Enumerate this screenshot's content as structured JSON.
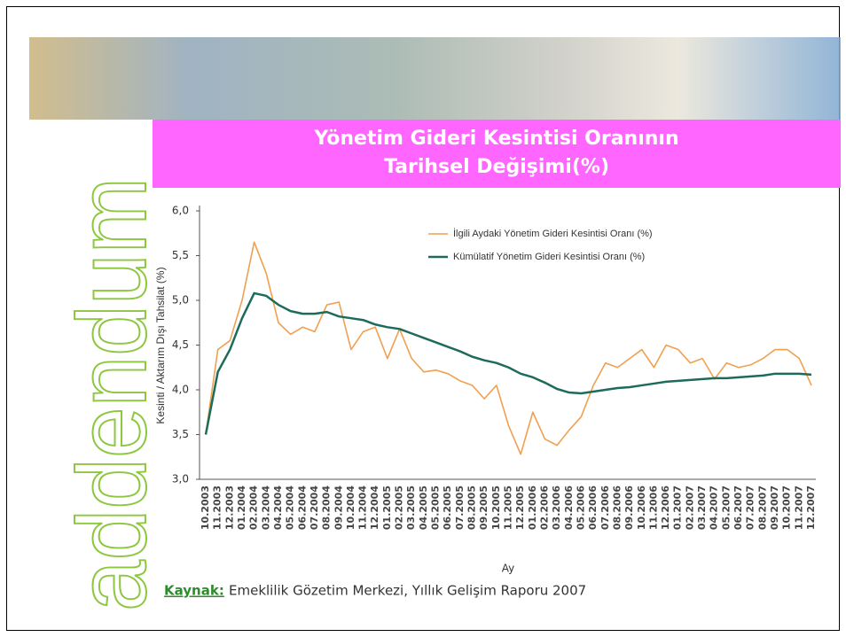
{
  "logo": "addendum",
  "chart_data": {
    "type": "line",
    "title": [
      "Yönetim Gideri Kesintisi Oranının",
      "Tarihsel Değişimi(%)"
    ],
    "y_label": "Kesinti / Aktarım Dışı Tahsilat (%)",
    "x_label": "Ay",
    "categories": [
      "10.2003",
      "11.2003",
      "12.2003",
      "01.2004",
      "02.2004",
      "03.2004",
      "04.2004",
      "05.2004",
      "06.2004",
      "07.2004",
      "08.2004",
      "09.2004",
      "10.2004",
      "11.2004",
      "12.2004",
      "01.2005",
      "02.2005",
      "03.2005",
      "04.2005",
      "05.2005",
      "06.2005",
      "07.2005",
      "08.2005",
      "09.2005",
      "10.2005",
      "11.2005",
      "12.2005",
      "01.2006",
      "02.2006",
      "03.2006",
      "04.2006",
      "05.2006",
      "06.2006",
      "07.2006",
      "08.2006",
      "09.2006",
      "10.2006",
      "11.2006",
      "12.2006",
      "01.2007",
      "02.2007",
      "03.2007",
      "04.2007",
      "05.2007",
      "06.2007",
      "07.2007",
      "08.2007",
      "09.2007",
      "10.2007",
      "11.2007",
      "12.2007"
    ],
    "series": [
      {
        "name": "İlgili Aydaki Yönetim Gideri Kesintisi Oranı (%)",
        "color": "#f0a050",
        "values": [
          3.5,
          4.45,
          4.55,
          5.0,
          5.65,
          5.3,
          4.75,
          4.62,
          4.7,
          4.65,
          4.95,
          4.98,
          4.45,
          4.65,
          4.7,
          4.35,
          4.68,
          4.35,
          4.2,
          4.22,
          4.18,
          4.1,
          4.05,
          3.9,
          4.05,
          3.6,
          3.28,
          3.75,
          3.45,
          3.38,
          3.55,
          3.7,
          4.05,
          4.3,
          4.25,
          4.35,
          4.45,
          4.25,
          4.5,
          4.45,
          4.3,
          4.35,
          4.12,
          4.3,
          4.25,
          4.28,
          4.35,
          4.45,
          4.45,
          4.35,
          4.05
        ]
      },
      {
        "name": "Kümülatif Yönetim Gideri Kesintisi Oranı (%)",
        "color": "#1e6b5c",
        "values": [
          3.5,
          4.2,
          4.45,
          4.8,
          5.08,
          5.05,
          4.95,
          4.88,
          4.85,
          4.85,
          4.87,
          4.82,
          4.8,
          4.78,
          4.73,
          4.7,
          4.68,
          4.63,
          4.58,
          4.53,
          4.48,
          4.43,
          4.37,
          4.33,
          4.3,
          4.25,
          4.18,
          4.14,
          4.08,
          4.01,
          3.97,
          3.96,
          3.98,
          4.0,
          4.02,
          4.03,
          4.05,
          4.07,
          4.09,
          4.1,
          4.11,
          4.12,
          4.13,
          4.13,
          4.14,
          4.15,
          4.16,
          4.18,
          4.18,
          4.18,
          4.17
        ]
      }
    ],
    "ylim": [
      3,
      6
    ],
    "yticks": [
      {
        "value": 6,
        "label": "6,0"
      },
      {
        "value": 5.5,
        "label": "5,5"
      },
      {
        "value": 5,
        "label": "5,0"
      },
      {
        "value": 4.5,
        "label": "4,5"
      },
      {
        "value": 4,
        "label": "4,0"
      },
      {
        "value": 3.5,
        "label": "3,5"
      },
      {
        "value": 3,
        "label": "3,0"
      }
    ],
    "grid": false,
    "legend": "top-right",
    "source": {
      "label": "Kaynak:",
      "text": "Emeklilik Gözetim Merkezi, Yıllık Gelişim Raporu 2007"
    }
  }
}
